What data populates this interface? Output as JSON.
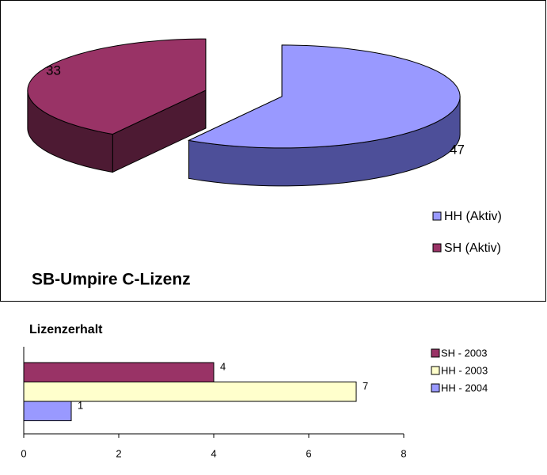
{
  "chart_data": [
    {
      "type": "pie",
      "title": "SB-Umpire C-Lizenz",
      "labels": [
        "HH (Aktiv)",
        "SH (Aktiv)"
      ],
      "values": [
        47,
        33
      ],
      "colors": [
        "#9999ff",
        "#993366"
      ],
      "side_colors": [
        "#4d4f99",
        "#4d1a33"
      ]
    },
    {
      "type": "bar",
      "orientation": "horizontal",
      "title": "Lizenzerhalt",
      "categories": [
        null
      ],
      "series": [
        {
          "name": "SH - 2003",
          "color": "#993366",
          "values": [
            4
          ]
        },
        {
          "name": "HH - 2003",
          "color": "#ffffcc",
          "values": [
            7
          ]
        },
        {
          "name": "HH - 2004",
          "color": "#9999ff",
          "values": [
            1
          ]
        }
      ],
      "xlim": [
        0,
        8
      ],
      "xticks": [
        0,
        2,
        4,
        6,
        8
      ]
    }
  ]
}
